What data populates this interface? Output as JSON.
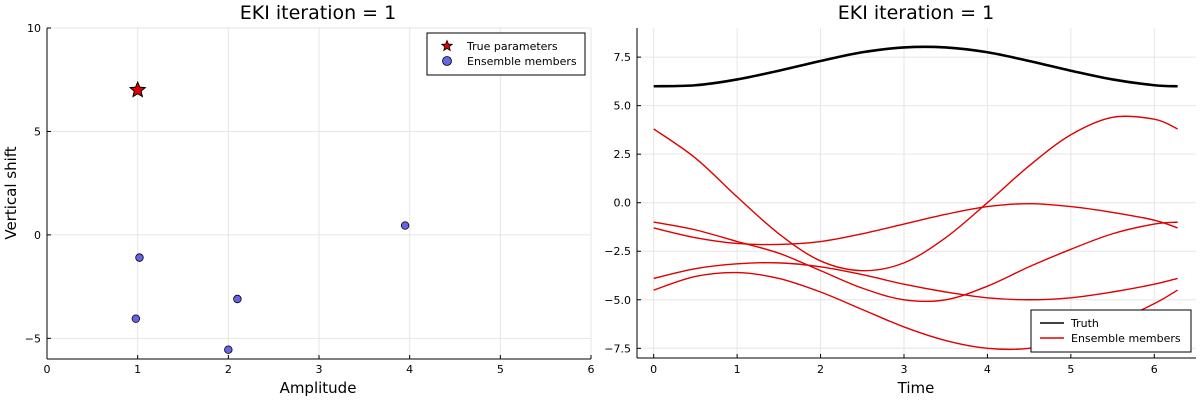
{
  "colors": {
    "star": "#e00000",
    "ensemble_marker": "#6464e6",
    "truth_line": "#000000",
    "ensemble_line": "#e00000",
    "grid": "#e6e6e6"
  },
  "chart_data": [
    {
      "type": "scatter",
      "title": "EKI iteration = 1",
      "xlabel": "Amplitude",
      "ylabel": "Vertical shift",
      "xlim": [
        0,
        6
      ],
      "ylim": [
        -6,
        10
      ],
      "xticks": [
        "0",
        "1",
        "2",
        "3",
        "4",
        "5",
        "6"
      ],
      "xtick_values": [
        0,
        1,
        2,
        3,
        4,
        5,
        6
      ],
      "yticks": [
        "−5",
        "0",
        "5",
        "10"
      ],
      "ytick_values": [
        -5,
        0,
        5,
        10
      ],
      "grid": true,
      "legend_position": "top-right",
      "series": [
        {
          "name": "True parameters",
          "marker": "star",
          "points": [
            [
              1.0,
              7.0
            ]
          ]
        },
        {
          "name": "Ensemble members",
          "marker": "circle",
          "points": [
            [
              1.02,
              -1.1
            ],
            [
              0.98,
              -4.05
            ],
            [
              2.0,
              -5.55
            ],
            [
              2.1,
              -3.1
            ],
            [
              3.95,
              0.45
            ]
          ]
        }
      ]
    },
    {
      "type": "line",
      "title": "EKI iteration = 1",
      "xlabel": "Time",
      "ylabel": "",
      "xlim": [
        -0.2,
        6.5
      ],
      "ylim": [
        -8,
        9
      ],
      "xticks": [
        "0",
        "1",
        "2",
        "3",
        "4",
        "5",
        "6"
      ],
      "xtick_values": [
        0,
        1,
        2,
        3,
        4,
        5,
        6
      ],
      "yticks": [
        "−7.5",
        "−5.0",
        "−2.5",
        "0.0",
        "2.5",
        "5.0",
        "7.5"
      ],
      "ytick_values": [
        -7.5,
        -5,
        -2.5,
        0,
        2.5,
        5,
        7.5
      ],
      "grid": true,
      "legend_position": "bottom-right",
      "x": [
        0,
        0.5,
        1.0,
        1.5,
        2.0,
        2.5,
        3.0,
        3.5,
        4.0,
        4.5,
        5.0,
        5.5,
        6.0,
        6.28
      ],
      "series": [
        {
          "name": "Truth",
          "values": [
            6.0,
            6.05,
            6.35,
            6.8,
            7.3,
            7.75,
            8.0,
            8.0,
            7.75,
            7.3,
            6.8,
            6.35,
            6.05,
            6.0
          ]
        },
        {
          "name": "Ensemble members",
          "values": [
            3.8,
            2.3,
            0.3,
            -1.6,
            -3.0,
            -3.5,
            -3.1,
            -1.8,
            0.0,
            1.9,
            3.5,
            4.4,
            4.3,
            3.8
          ]
        },
        {
          "name": "",
          "values": [
            -1.0,
            -1.4,
            -2.0,
            -2.6,
            -3.5,
            -4.4,
            -5.0,
            -5.0,
            -4.3,
            -3.3,
            -2.4,
            -1.6,
            -1.1,
            -1.0
          ]
        },
        {
          "name": "",
          "values": [
            -1.3,
            -1.8,
            -2.1,
            -2.15,
            -2.0,
            -1.6,
            -1.1,
            -0.6,
            -0.2,
            -0.05,
            -0.2,
            -0.5,
            -0.9,
            -1.3
          ]
        },
        {
          "name": "",
          "values": [
            -3.9,
            -3.4,
            -3.15,
            -3.1,
            -3.3,
            -3.7,
            -4.2,
            -4.6,
            -4.9,
            -5.0,
            -4.9,
            -4.6,
            -4.2,
            -3.9
          ]
        },
        {
          "name": "",
          "values": [
            -4.5,
            -3.8,
            -3.6,
            -3.9,
            -4.6,
            -5.5,
            -6.4,
            -7.1,
            -7.5,
            -7.5,
            -7.0,
            -6.2,
            -5.2,
            -4.5
          ]
        }
      ],
      "legend": [
        "Truth",
        "Ensemble members"
      ]
    }
  ]
}
